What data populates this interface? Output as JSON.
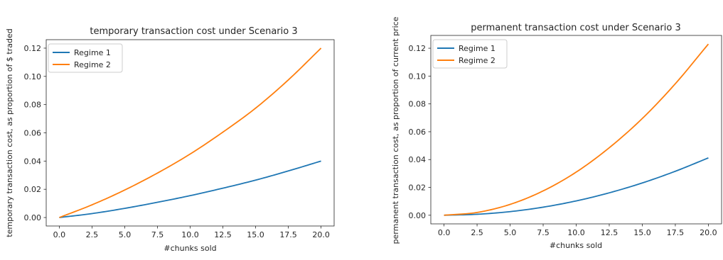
{
  "chart_data": [
    {
      "type": "line",
      "title": "temporary transaction cost under Scenario 3",
      "xlabel": "#chunks sold",
      "ylabel": "temporary transaction cost, as proportion of $ traded",
      "xlim": [
        -1,
        21
      ],
      "ylim": [
        -0.006,
        0.126
      ],
      "xticks": [
        0.0,
        2.5,
        5.0,
        7.5,
        10.0,
        12.5,
        15.0,
        17.5,
        20.0
      ],
      "xtick_labels": [
        "0.0",
        "2.5",
        "5.0",
        "7.5",
        "10.0",
        "12.5",
        "15.0",
        "17.5",
        "20.0"
      ],
      "yticks": [
        0.0,
        0.02,
        0.04,
        0.06,
        0.08,
        0.1,
        0.12
      ],
      "ytick_labels": [
        "0.00",
        "0.02",
        "0.04",
        "0.06",
        "0.08",
        "0.10",
        "0.12"
      ],
      "legend": "top-left",
      "grid": false,
      "x": [
        0,
        2.5,
        5,
        7.5,
        10,
        12.5,
        15,
        17.5,
        20
      ],
      "series": [
        {
          "name": "Regime 1",
          "color": "#1f77b4",
          "values": [
            0.0,
            0.0028,
            0.0065,
            0.0108,
            0.0155,
            0.0208,
            0.0265,
            0.033,
            0.04
          ]
        },
        {
          "name": "Regime 2",
          "color": "#ff7f0e",
          "values": [
            0.0,
            0.009,
            0.0195,
            0.0315,
            0.045,
            0.0605,
            0.0775,
            0.0975,
            0.12
          ]
        }
      ]
    },
    {
      "type": "line",
      "title": "permanent transaction cost under Scenario 3",
      "xlabel": "#chunks sold",
      "ylabel": "permanent transaction cost, as proportion of current price",
      "xlim": [
        -1,
        21
      ],
      "ylim": [
        -0.0062,
        0.1292
      ],
      "xticks": [
        0.0,
        2.5,
        5.0,
        7.5,
        10.0,
        12.5,
        15.0,
        17.5,
        20.0
      ],
      "xtick_labels": [
        "0.0",
        "2.5",
        "5.0",
        "7.5",
        "10.0",
        "12.5",
        "15.0",
        "17.5",
        "20.0"
      ],
      "yticks": [
        0.0,
        0.02,
        0.04,
        0.06,
        0.08,
        0.1,
        0.12
      ],
      "ytick_labels": [
        "0.00",
        "0.02",
        "0.04",
        "0.06",
        "0.08",
        "0.10",
        "0.12"
      ],
      "legend": "top-left",
      "grid": false,
      "x": [
        0,
        2.5,
        5,
        7.5,
        10,
        12.5,
        15,
        17.5,
        20
      ],
      "series": [
        {
          "name": "Regime 1",
          "color": "#1f77b4",
          "values": [
            0.0,
            0.0007,
            0.0026,
            0.0058,
            0.0103,
            0.0161,
            0.0232,
            0.0316,
            0.0412
          ]
        },
        {
          "name": "Regime 2",
          "color": "#ff7f0e",
          "values": [
            0.0,
            0.002,
            0.0078,
            0.0175,
            0.031,
            0.0485,
            0.0695,
            0.0945,
            0.123
          ]
        }
      ]
    }
  ]
}
